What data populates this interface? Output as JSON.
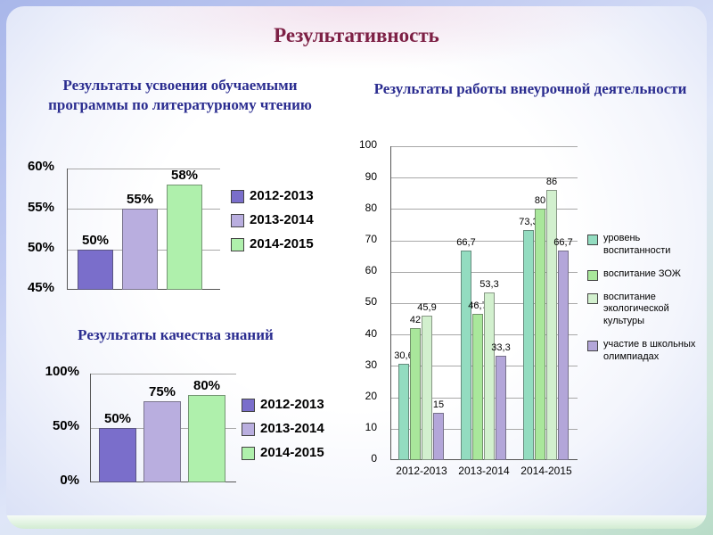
{
  "title": "Результативность",
  "colors": {
    "title_text": "#7D2045",
    "subtitle_text": "#2B2D90",
    "series_2012": "#7A6ECB",
    "series_2013": "#B9AEDF",
    "series_2014": "#AFF0AC",
    "mint": "#93DCC0",
    "green": "#A9E79B",
    "pale_green": "#D2F0CE",
    "lavender": "#B3A6D9"
  },
  "chart_data": [
    {
      "type": "bar",
      "title": "Результаты усвоения обучаемыми программы по литературному чтению",
      "categories": [
        "2012-2013",
        "2013-2014",
        "2014-2015"
      ],
      "values": [
        50,
        55,
        58
      ],
      "value_labels": [
        "50%",
        "55%",
        "58%"
      ],
      "ylim": [
        45,
        60
      ],
      "yticks": [
        45,
        50,
        55,
        60
      ],
      "ytick_labels": [
        "45%",
        "50%",
        "55%",
        "60%"
      ],
      "bar_colors": [
        "#7A6ECB",
        "#B9AEDF",
        "#AFF0AC"
      ],
      "legend": [
        {
          "label": "2012-2013",
          "color": "#7A6ECB"
        },
        {
          "label": "2013-2014",
          "color": "#B9AEDF"
        },
        {
          "label": "2014-2015",
          "color": "#AFF0AC"
        }
      ],
      "legend_position": "right",
      "grid": true,
      "show_x_labels": false
    },
    {
      "type": "bar",
      "title": "Результаты качества знаний",
      "categories": [
        "2012-2013",
        "2013-2014",
        "2014-2015"
      ],
      "values": [
        50,
        75,
        80
      ],
      "value_labels": [
        "50%",
        "75%",
        "80%"
      ],
      "ylim": [
        0,
        100
      ],
      "yticks": [
        0,
        50,
        100
      ],
      "ytick_labels": [
        "0%",
        "50%",
        "100%"
      ],
      "bar_colors": [
        "#7A6ECB",
        "#B9AEDF",
        "#AFF0AC"
      ],
      "legend": [
        {
          "label": "2012-2013",
          "color": "#7A6ECB"
        },
        {
          "label": "2013-2014",
          "color": "#B9AEDF"
        },
        {
          "label": "2014-2015",
          "color": "#AFF0AC"
        }
      ],
      "legend_position": "right",
      "grid": true,
      "show_x_labels": false
    },
    {
      "type": "bar",
      "title": "Результаты работы внеурочной деятельности",
      "categories": [
        "2012-2013",
        "2013-2014",
        "2014-2015"
      ],
      "series": [
        {
          "name": "уровень воспитанности",
          "color": "#93DCC0",
          "values": [
            30.6,
            66.7,
            73.3
          ],
          "value_labels": [
            "30,6",
            "66,7",
            "73,3"
          ]
        },
        {
          "name": "воспитание ЗОЖ",
          "color": "#A9E79B",
          "values": [
            42,
            46.7,
            80
          ],
          "value_labels": [
            "42",
            "46,7",
            "80"
          ]
        },
        {
          "name": "воспитание экологической культуры",
          "color": "#D2F0CE",
          "values": [
            45.9,
            53.3,
            86
          ],
          "value_labels": [
            "45,9",
            "53,3",
            "86"
          ]
        },
        {
          "name": "участие в школьных олимпиадах",
          "color": "#B3A6D9",
          "values": [
            15,
            33.3,
            66.7
          ],
          "value_labels": [
            "15",
            "33,3",
            "66,7"
          ]
        }
      ],
      "ylim": [
        0,
        100
      ],
      "yticks": [
        0,
        10,
        20,
        30,
        40,
        50,
        60,
        70,
        80,
        90,
        100
      ],
      "ytick_labels": [
        "0",
        "10",
        "20",
        "30",
        "40",
        "50",
        "60",
        "70",
        "80",
        "90",
        "100"
      ],
      "legend_position": "right",
      "grid": true,
      "show_x_labels": true
    }
  ]
}
